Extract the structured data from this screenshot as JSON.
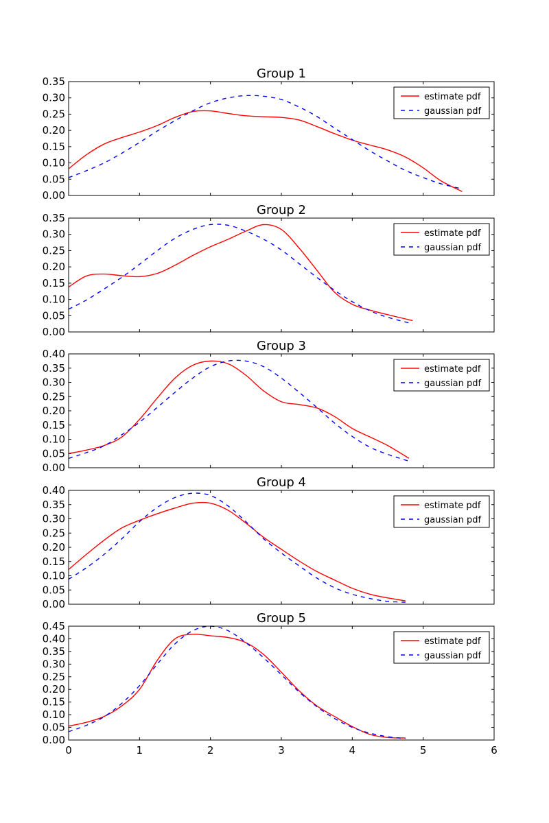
{
  "chart_data": [
    {
      "type": "line",
      "title": "Group 1",
      "xlabel": "",
      "ylabel": "",
      "xlim": [
        0,
        6
      ],
      "ylim": [
        0,
        0.35
      ],
      "yticks": [
        "0.00",
        "0.05",
        "0.10",
        "0.15",
        "0.20",
        "0.25",
        "0.30",
        "0.35"
      ],
      "xticks": [],
      "grid": false,
      "legend_position": "top-right",
      "series": [
        {
          "name": "estimate pdf",
          "color": "#ff0000",
          "style": "solid",
          "x": [
            0,
            0.25,
            0.5,
            0.75,
            1.0,
            1.25,
            1.5,
            1.75,
            2.0,
            2.25,
            2.5,
            2.75,
            3.0,
            3.25,
            3.5,
            3.75,
            4.0,
            4.25,
            4.5,
            4.75,
            5.0,
            5.25,
            5.55
          ],
          "y": [
            0.082,
            0.125,
            0.158,
            0.178,
            0.195,
            0.215,
            0.24,
            0.258,
            0.26,
            0.252,
            0.245,
            0.242,
            0.24,
            0.232,
            0.212,
            0.19,
            0.17,
            0.155,
            0.14,
            0.118,
            0.085,
            0.045,
            0.012
          ]
        },
        {
          "name": "gaussian pdf",
          "color": "#0000ff",
          "style": "dashed",
          "x": [
            0,
            0.25,
            0.5,
            0.75,
            1.0,
            1.25,
            1.5,
            1.75,
            2.0,
            2.25,
            2.5,
            2.75,
            3.0,
            3.25,
            3.5,
            3.75,
            4.0,
            4.25,
            4.5,
            4.75,
            5.0,
            5.25,
            5.55
          ],
          "y": [
            0.055,
            0.076,
            0.1,
            0.13,
            0.163,
            0.198,
            0.23,
            0.26,
            0.285,
            0.3,
            0.307,
            0.305,
            0.295,
            0.272,
            0.243,
            0.207,
            0.172,
            0.137,
            0.106,
            0.077,
            0.055,
            0.036,
            0.02
          ]
        }
      ]
    },
    {
      "type": "line",
      "title": "Group 2",
      "xlabel": "",
      "ylabel": "",
      "xlim": [
        0,
        6
      ],
      "ylim": [
        0,
        0.35
      ],
      "yticks": [
        "0.00",
        "0.05",
        "0.10",
        "0.15",
        "0.20",
        "0.25",
        "0.30",
        "0.35"
      ],
      "xticks": [],
      "grid": false,
      "legend_position": "top-right",
      "series": [
        {
          "name": "estimate pdf",
          "color": "#ff0000",
          "style": "solid",
          "x": [
            0,
            0.25,
            0.5,
            0.75,
            1.0,
            1.25,
            1.5,
            1.75,
            2.0,
            2.25,
            2.5,
            2.75,
            3.0,
            3.25,
            3.5,
            3.75,
            4.0,
            4.25,
            4.5,
            4.85
          ],
          "y": [
            0.138,
            0.172,
            0.178,
            0.173,
            0.17,
            0.18,
            0.205,
            0.235,
            0.262,
            0.285,
            0.31,
            0.33,
            0.315,
            0.258,
            0.19,
            0.122,
            0.085,
            0.067,
            0.053,
            0.035
          ]
        },
        {
          "name": "gaussian pdf",
          "color": "#0000ff",
          "style": "dashed",
          "x": [
            0,
            0.25,
            0.5,
            0.75,
            1.0,
            1.25,
            1.5,
            1.75,
            2.0,
            2.25,
            2.5,
            2.75,
            3.0,
            3.25,
            3.5,
            3.75,
            4.0,
            4.25,
            4.5,
            4.85
          ],
          "y": [
            0.07,
            0.098,
            0.132,
            0.168,
            0.208,
            0.25,
            0.288,
            0.315,
            0.33,
            0.328,
            0.31,
            0.285,
            0.252,
            0.21,
            0.168,
            0.128,
            0.093,
            0.065,
            0.045,
            0.025
          ]
        }
      ]
    },
    {
      "type": "line",
      "title": "Group 3",
      "xlabel": "",
      "ylabel": "",
      "xlim": [
        0,
        6
      ],
      "ylim": [
        0,
        0.4
      ],
      "yticks": [
        "0.00",
        "0.05",
        "0.10",
        "0.15",
        "0.20",
        "0.25",
        "0.30",
        "0.35",
        "0.40"
      ],
      "xticks": [],
      "grid": false,
      "legend_position": "top-right",
      "series": [
        {
          "name": "estimate pdf",
          "color": "#ff0000",
          "style": "solid",
          "x": [
            0,
            0.25,
            0.5,
            0.75,
            1.0,
            1.25,
            1.5,
            1.75,
            2.0,
            2.25,
            2.5,
            2.75,
            3.0,
            3.25,
            3.5,
            3.75,
            4.0,
            4.25,
            4.5,
            4.8
          ],
          "y": [
            0.05,
            0.062,
            0.078,
            0.108,
            0.17,
            0.245,
            0.315,
            0.36,
            0.375,
            0.365,
            0.325,
            0.27,
            0.232,
            0.222,
            0.21,
            0.18,
            0.138,
            0.108,
            0.078,
            0.033
          ]
        },
        {
          "name": "gaussian pdf",
          "color": "#0000ff",
          "style": "dashed",
          "x": [
            0,
            0.25,
            0.5,
            0.75,
            1.0,
            1.25,
            1.5,
            1.75,
            2.0,
            2.25,
            2.5,
            2.75,
            3.0,
            3.25,
            3.5,
            3.75,
            4.0,
            4.25,
            4.5,
            4.8
          ],
          "y": [
            0.033,
            0.053,
            0.077,
            0.116,
            0.16,
            0.212,
            0.265,
            0.315,
            0.355,
            0.375,
            0.375,
            0.355,
            0.315,
            0.265,
            0.212,
            0.157,
            0.11,
            0.072,
            0.047,
            0.023
          ]
        }
      ]
    },
    {
      "type": "line",
      "title": "Group 4",
      "xlabel": "",
      "ylabel": "",
      "xlim": [
        0,
        6
      ],
      "ylim": [
        0,
        0.4
      ],
      "yticks": [
        "0.00",
        "0.05",
        "0.10",
        "0.15",
        "0.20",
        "0.25",
        "0.30",
        "0.35",
        "0.40"
      ],
      "xticks": [],
      "grid": false,
      "legend_position": "top-right",
      "series": [
        {
          "name": "estimate pdf",
          "color": "#ff0000",
          "style": "solid",
          "x": [
            0,
            0.25,
            0.5,
            0.75,
            1.0,
            1.25,
            1.5,
            1.75,
            2.0,
            2.25,
            2.5,
            2.75,
            3.0,
            3.25,
            3.5,
            3.75,
            4.0,
            4.25,
            4.5,
            4.75
          ],
          "y": [
            0.122,
            0.175,
            0.225,
            0.268,
            0.295,
            0.318,
            0.338,
            0.355,
            0.355,
            0.33,
            0.285,
            0.235,
            0.193,
            0.152,
            0.115,
            0.085,
            0.056,
            0.035,
            0.022,
            0.012
          ]
        },
        {
          "name": "gaussian pdf",
          "color": "#0000ff",
          "style": "dashed",
          "x": [
            0,
            0.25,
            0.5,
            0.75,
            1.0,
            1.25,
            1.5,
            1.75,
            2.0,
            2.25,
            2.5,
            2.75,
            3.0,
            3.25,
            3.5,
            3.75,
            4.0,
            4.25,
            4.5,
            4.75
          ],
          "y": [
            0.088,
            0.128,
            0.175,
            0.23,
            0.29,
            0.34,
            0.375,
            0.39,
            0.382,
            0.345,
            0.29,
            0.23,
            0.18,
            0.135,
            0.092,
            0.058,
            0.035,
            0.02,
            0.01,
            0.007
          ]
        }
      ]
    },
    {
      "type": "line",
      "title": "Group 5",
      "xlabel": "",
      "ylabel": "",
      "xlim": [
        0,
        6
      ],
      "ylim": [
        0,
        0.45
      ],
      "yticks": [
        "0.00",
        "0.05",
        "0.10",
        "0.15",
        "0.20",
        "0.25",
        "0.30",
        "0.35",
        "0.40",
        "0.45"
      ],
      "xticks": [
        "0",
        "1",
        "2",
        "3",
        "4",
        "5",
        "6"
      ],
      "grid": false,
      "legend_position": "top-right",
      "series": [
        {
          "name": "estimate pdf",
          "color": "#ff0000",
          "style": "solid",
          "x": [
            0,
            0.25,
            0.5,
            0.75,
            1.0,
            1.25,
            1.5,
            1.75,
            2.0,
            2.25,
            2.5,
            2.75,
            3.0,
            3.25,
            3.5,
            3.75,
            4.0,
            4.25,
            4.5,
            4.75
          ],
          "y": [
            0.055,
            0.07,
            0.093,
            0.135,
            0.2,
            0.315,
            0.4,
            0.418,
            0.412,
            0.405,
            0.385,
            0.338,
            0.268,
            0.195,
            0.135,
            0.093,
            0.053,
            0.022,
            0.01,
            0.008
          ]
        },
        {
          "name": "gaussian pdf",
          "color": "#0000ff",
          "style": "dashed",
          "x": [
            0,
            0.25,
            0.5,
            0.75,
            1.0,
            1.25,
            1.5,
            1.75,
            2.0,
            2.25,
            2.5,
            2.75,
            3.0,
            3.25,
            3.5,
            3.75,
            4.0,
            4.25,
            4.5,
            4.75
          ],
          "y": [
            0.033,
            0.058,
            0.092,
            0.145,
            0.215,
            0.3,
            0.38,
            0.432,
            0.45,
            0.432,
            0.385,
            0.325,
            0.258,
            0.19,
            0.132,
            0.085,
            0.05,
            0.027,
            0.013,
            0.006
          ]
        }
      ]
    }
  ]
}
